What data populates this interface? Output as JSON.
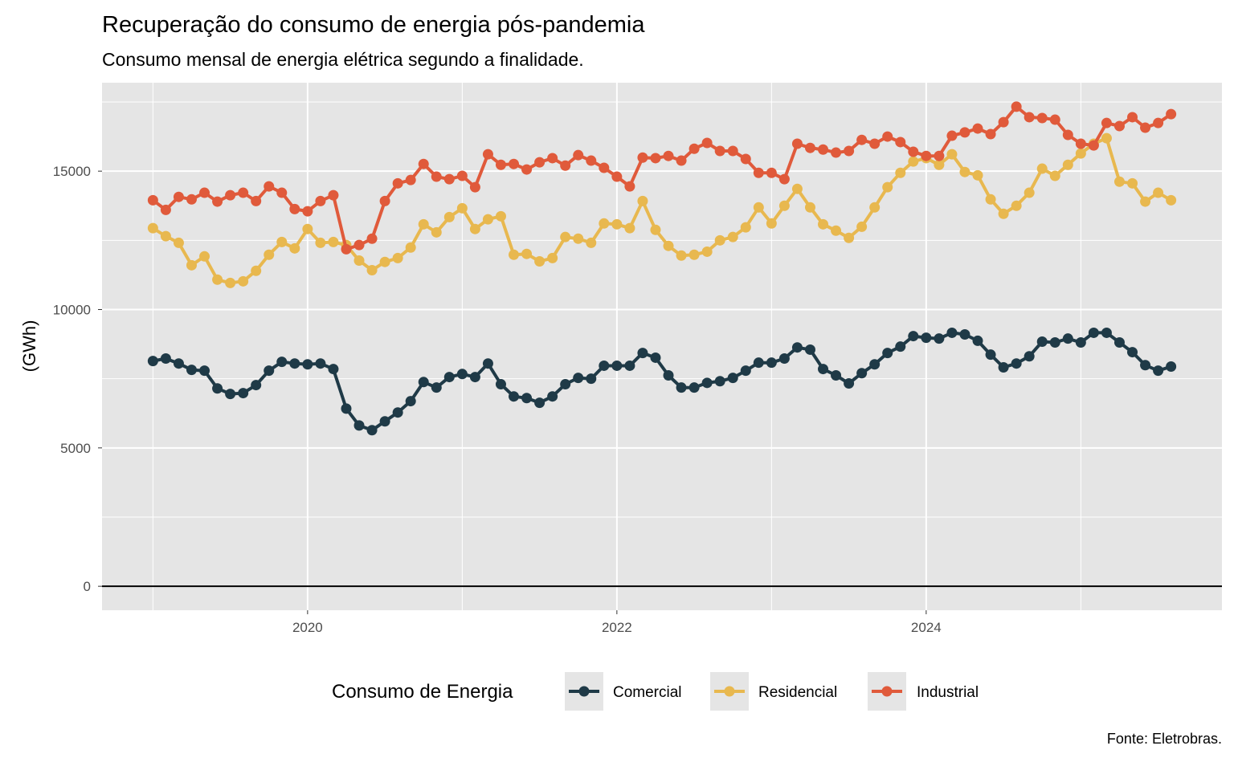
{
  "chart_data": {
    "type": "line",
    "title": "Recuperação do consumo de energia pós-pandemia",
    "subtitle": "Consumo mensal de energia elétrica segundo a finalidade.",
    "xlabel": "",
    "ylabel": "(GWh)",
    "caption": "Fonte: Eletrobras.",
    "x_start": "2019-01",
    "x_end": "2025-08",
    "x_ticks": [
      "2020",
      "2022",
      "2024"
    ],
    "y_ticks": [
      0,
      5000,
      10000,
      15000
    ],
    "ylim": [
      -866,
      18196
    ],
    "grid": true,
    "hline": 0,
    "legend": {
      "title": "Consumo de Energia",
      "position": "bottom"
    },
    "series": [
      {
        "name": "Comercial",
        "color": "#1f3a47",
        "values": [
          8140,
          8230,
          8050,
          7820,
          7790,
          7150,
          6950,
          6980,
          7270,
          7790,
          8110,
          8050,
          8020,
          8050,
          7850,
          6420,
          5810,
          5640,
          5960,
          6280,
          6690,
          7380,
          7180,
          7560,
          7670,
          7560,
          8050,
          7300,
          6860,
          6800,
          6630,
          6860,
          7300,
          7530,
          7500,
          7970,
          7970,
          7970,
          8430,
          8260,
          7620,
          7180,
          7180,
          7350,
          7410,
          7530,
          7790,
          8080,
          8080,
          8230,
          8630,
          8550,
          7850,
          7620,
          7330,
          7700,
          8020,
          8430,
          8660,
          9040,
          8980,
          8950,
          9160,
          9100,
          8870,
          8370,
          7910,
          8050,
          8310,
          8840,
          8810,
          8950,
          8810,
          9160,
          9160,
          8810,
          8460,
          7990,
          7790,
          7940
        ]
      },
      {
        "name": "Residencial",
        "color": "#e8b84f",
        "values": [
          12940,
          12650,
          12410,
          11600,
          11920,
          11080,
          10960,
          11020,
          11400,
          11980,
          12440,
          12210,
          12910,
          12410,
          12440,
          12330,
          11770,
          11420,
          11720,
          11860,
          12240,
          13080,
          12790,
          13340,
          13660,
          12910,
          13260,
          13370,
          11980,
          12010,
          11740,
          11860,
          12620,
          12560,
          12410,
          13110,
          13080,
          12940,
          13920,
          12880,
          12300,
          11950,
          11980,
          12090,
          12500,
          12620,
          12970,
          13690,
          13110,
          13750,
          14360,
          13690,
          13080,
          12850,
          12590,
          12990,
          13690,
          14420,
          14940,
          15350,
          15470,
          15230,
          15610,
          14970,
          14850,
          13980,
          13460,
          13750,
          14220,
          15090,
          14830,
          15230,
          15640,
          15990,
          16190,
          14620,
          14560,
          13900,
          14220,
          13950
        ]
      },
      {
        "name": "Industrial",
        "color": "#e05a3b",
        "values": [
          13950,
          13600,
          14070,
          13980,
          14220,
          13900,
          14130,
          14220,
          13920,
          14450,
          14220,
          13630,
          13550,
          13920,
          14130,
          12180,
          12330,
          12560,
          13920,
          14560,
          14680,
          15260,
          14800,
          14710,
          14830,
          14420,
          15610,
          15230,
          15260,
          15060,
          15320,
          15470,
          15200,
          15580,
          15380,
          15120,
          14800,
          14450,
          15490,
          15470,
          15550,
          15380,
          15810,
          16020,
          15730,
          15730,
          15440,
          14940,
          14940,
          14710,
          15990,
          15840,
          15780,
          15670,
          15730,
          16130,
          15990,
          16250,
          16050,
          15700,
          15550,
          15550,
          16280,
          16400,
          16540,
          16340,
          16770,
          17330,
          16950,
          16920,
          16860,
          16310,
          15990,
          15930,
          16740,
          16630,
          16950,
          16570,
          16740,
          17060
        ]
      }
    ]
  }
}
